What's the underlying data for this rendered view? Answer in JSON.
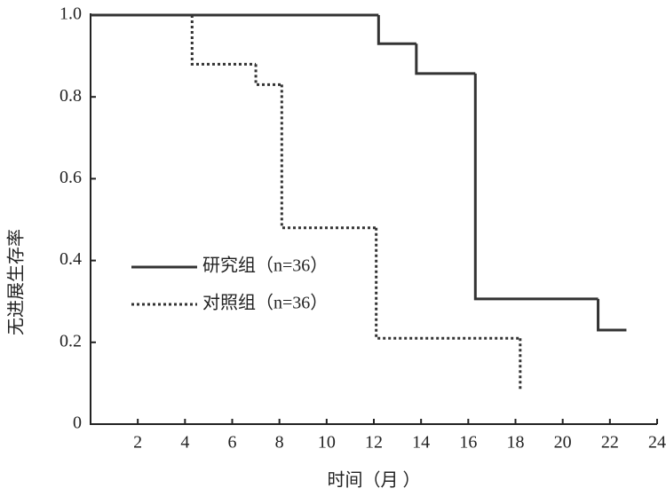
{
  "chart_data": {
    "type": "step",
    "xlabel": "时间（月 ）",
    "ylabel": "无进展生存率",
    "xlim": [
      0,
      24
    ],
    "xticks": [
      2,
      4,
      6,
      8,
      10,
      12,
      14,
      16,
      18,
      20,
      22,
      24
    ],
    "ylim": [
      0,
      1
    ],
    "yticks": [
      0,
      0.2,
      0.4,
      0.6,
      0.8,
      {
        "value": 1,
        "label": "1.0"
      }
    ],
    "series": [
      {
        "name": "研究组（n=36）",
        "color": "#333333",
        "style": "solid",
        "x": [
          0,
          12.2,
          13.8,
          16.3,
          21.5,
          22.7
        ],
        "values": [
          1,
          0.93,
          0.857,
          0.306,
          0.23,
          0.23
        ]
      },
      {
        "name": "对照组（n=36）",
        "color": "#333333",
        "style": "dotted",
        "x": [
          0,
          4.3,
          7.0,
          8.1,
          12.1,
          18.2
        ],
        "values": [
          1,
          0.88,
          0.83,
          0.48,
          0.21,
          0.08
        ]
      }
    ]
  }
}
